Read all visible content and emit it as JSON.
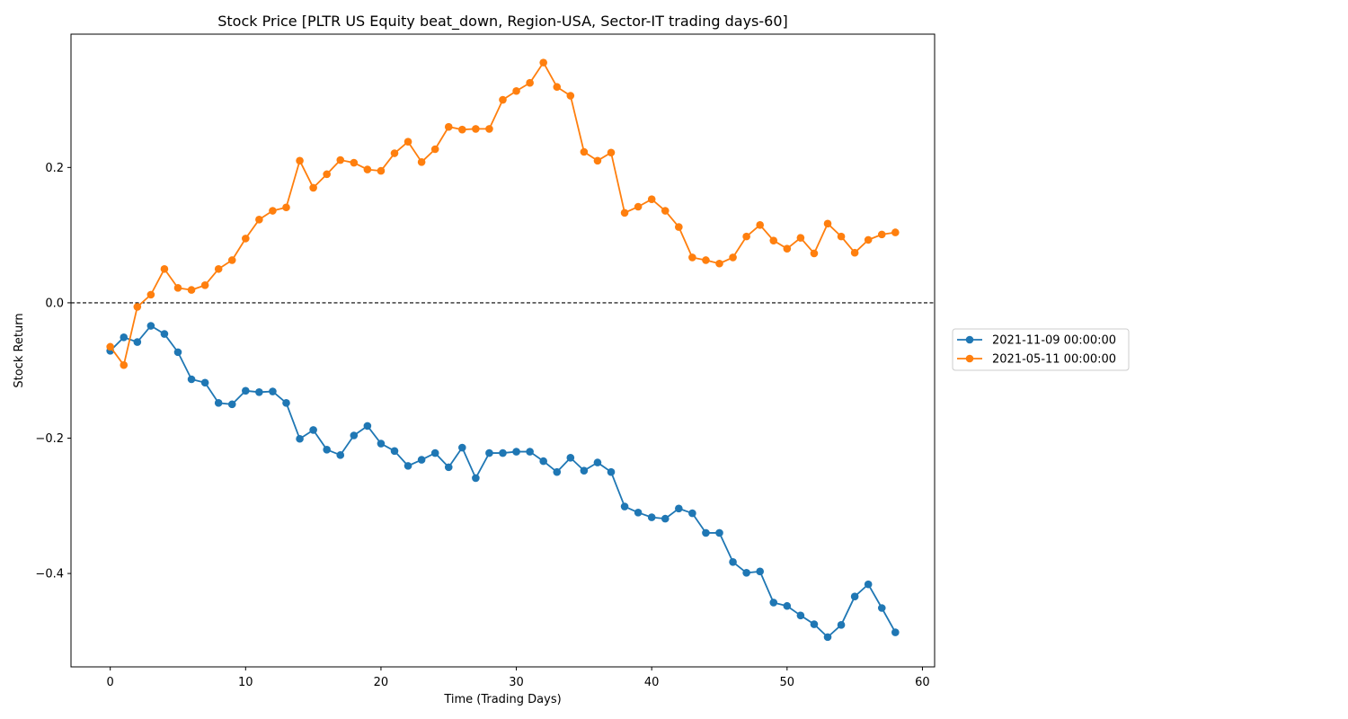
{
  "chart_data": {
    "type": "line",
    "title": "Stock Price [PLTR US Equity beat_down, Region-USA, Sector-IT trading days-60]",
    "xlabel": "Time (Trading Days)",
    "ylabel": "Stock Return",
    "xlim": [
      -2.9,
      60.9
    ],
    "ylim": [
      -0.538,
      0.397
    ],
    "xticks": [
      0,
      10,
      20,
      30,
      40,
      50,
      60
    ],
    "xtick_labels": [
      "0",
      "10",
      "20",
      "30",
      "40",
      "50",
      "60"
    ],
    "yticks": [
      -0.4,
      -0.2,
      0.0,
      0.2
    ],
    "ytick_labels": [
      "−0.4",
      "−0.2",
      "0.0",
      "0.2"
    ],
    "reference_line": {
      "y": 0.0,
      "style": "dashed",
      "color": "#000000"
    },
    "grid": false,
    "legend": {
      "placement": "outside-right"
    },
    "x": [
      0,
      1,
      2,
      3,
      4,
      5,
      6,
      7,
      8,
      9,
      10,
      11,
      12,
      13,
      14,
      15,
      16,
      17,
      18,
      19,
      20,
      21,
      22,
      23,
      24,
      25,
      26,
      27,
      28,
      29,
      30,
      31,
      32,
      33,
      34,
      35,
      36,
      37,
      38,
      39,
      40,
      41,
      42,
      43,
      44,
      45,
      46,
      47,
      48,
      49,
      50,
      51,
      52,
      53,
      54,
      55,
      56,
      57,
      58
    ],
    "series": [
      {
        "name": "2021-11-09 00:00:00",
        "color": "#1f77b4",
        "marker": "circle",
        "values": [
          -0.071,
          -0.051,
          -0.058,
          -0.034,
          -0.046,
          -0.073,
          -0.113,
          -0.118,
          -0.148,
          -0.15,
          -0.13,
          -0.132,
          -0.131,
          -0.148,
          -0.201,
          -0.188,
          -0.217,
          -0.225,
          -0.196,
          -0.182,
          -0.208,
          -0.219,
          -0.241,
          -0.232,
          -0.222,
          -0.243,
          -0.214,
          -0.259,
          -0.222,
          -0.222,
          -0.22,
          -0.22,
          -0.234,
          -0.25,
          -0.229,
          -0.248,
          -0.236,
          -0.25,
          -0.301,
          -0.31,
          -0.317,
          -0.319,
          -0.304,
          -0.311,
          -0.34,
          -0.34,
          -0.383,
          -0.399,
          -0.397,
          -0.443,
          -0.448,
          -0.462,
          -0.475,
          -0.494,
          -0.476,
          -0.434,
          -0.416,
          -0.451,
          -0.487
        ]
      },
      {
        "name": "2021-05-11 00:00:00",
        "color": "#ff7f0e",
        "marker": "circle",
        "values": [
          -0.065,
          -0.092,
          -0.006,
          0.012,
          0.05,
          0.022,
          0.019,
          0.026,
          0.05,
          0.063,
          0.095,
          0.123,
          0.136,
          0.141,
          0.21,
          0.17,
          0.19,
          0.211,
          0.207,
          0.197,
          0.195,
          0.221,
          0.238,
          0.208,
          0.227,
          0.26,
          0.256,
          0.257,
          0.257,
          0.3,
          0.313,
          0.325,
          0.355,
          0.319,
          0.306,
          0.223,
          0.21,
          0.222,
          0.133,
          0.142,
          0.153,
          0.136,
          0.112,
          0.067,
          0.063,
          0.058,
          0.067,
          0.098,
          0.115,
          0.092,
          0.08,
          0.096,
          0.073,
          0.117,
          0.098,
          0.074,
          0.093,
          0.101,
          0.104
        ]
      }
    ]
  }
}
